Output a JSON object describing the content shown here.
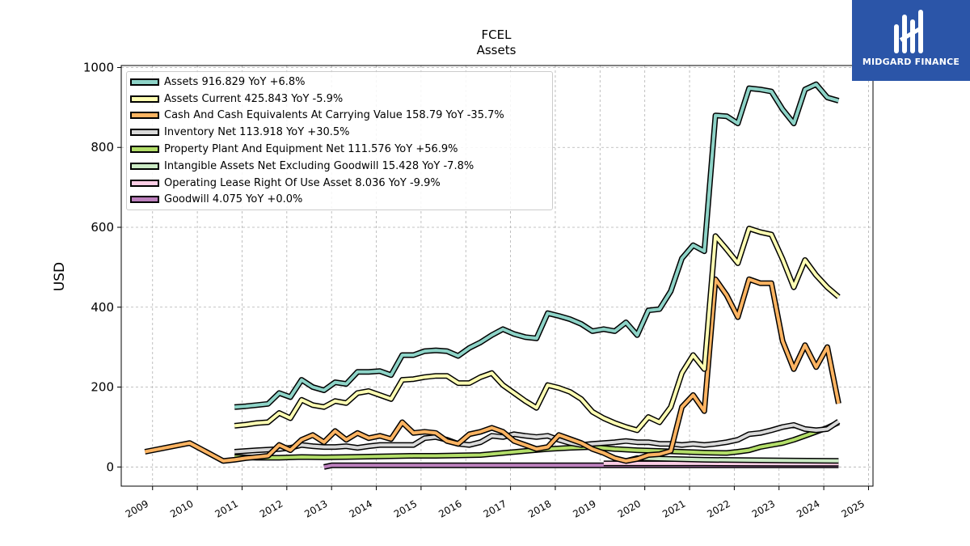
{
  "brand": {
    "name": "MIDGARD FINANCE",
    "bg_color": "#2b55a8",
    "icon": "midgard-logo-icon"
  },
  "chart_data": {
    "type": "line",
    "title": "FCEL",
    "subtitle": "Assets",
    "ylabel": "USD",
    "xlabel": "",
    "xlim": [
      2008.3,
      2025.1
    ],
    "ylim": [
      -48,
      1005
    ],
    "xticks": [
      "2009",
      "2010",
      "2011",
      "2012",
      "2013",
      "2014",
      "2015",
      "2016",
      "2017",
      "2018",
      "2019",
      "2020",
      "2021",
      "2022",
      "2023",
      "2024",
      "2025"
    ],
    "yticks": [
      0,
      200,
      400,
      600,
      800,
      1000
    ],
    "grid": true,
    "legend_position": "top-left",
    "series": [
      {
        "name": "Assets",
        "legend": "Assets  916.829 YoY +6.8%",
        "color": "#8dd3c7",
        "x": [
          2010.83,
          2011.08,
          2011.33,
          2011.58,
          2011.83,
          2012.08,
          2012.33,
          2012.58,
          2012.83,
          2013.08,
          2013.33,
          2013.58,
          2013.83,
          2014.08,
          2014.33,
          2014.58,
          2014.83,
          2015.08,
          2015.33,
          2015.58,
          2015.83,
          2016.08,
          2016.33,
          2016.58,
          2016.83,
          2017.08,
          2017.33,
          2017.58,
          2017.83,
          2018.08,
          2018.33,
          2018.58,
          2018.83,
          2019.08,
          2019.33,
          2019.58,
          2019.83,
          2020.08,
          2020.33,
          2020.58,
          2020.83,
          2021.08,
          2021.33,
          2021.58,
          2021.83,
          2022.08,
          2022.33,
          2022.58,
          2022.83,
          2023.08,
          2023.33,
          2023.58,
          2023.83,
          2024.08,
          2024.33
        ],
        "y": [
          150,
          152,
          155,
          158,
          185,
          175,
          218,
          200,
          192,
          212,
          208,
          238,
          238,
          240,
          230,
          280,
          280,
          290,
          292,
          290,
          278,
          298,
          312,
          330,
          345,
          333,
          325,
          322,
          385,
          378,
          370,
          358,
          340,
          345,
          340,
          362,
          330,
          392,
          395,
          440,
          522,
          555,
          540,
          880,
          878,
          860,
          948,
          945,
          940,
          895,
          860,
          945,
          958,
          925,
          916.829
        ]
      },
      {
        "name": "Assets Current",
        "legend": "Assets Current  425.843 YoY -5.9%",
        "color": "#ffffb3",
        "x": [
          2010.83,
          2011.08,
          2011.33,
          2011.58,
          2011.83,
          2012.08,
          2012.33,
          2012.58,
          2012.83,
          2013.08,
          2013.33,
          2013.58,
          2013.83,
          2014.08,
          2014.33,
          2014.58,
          2014.83,
          2015.08,
          2015.33,
          2015.58,
          2015.83,
          2016.08,
          2016.33,
          2016.58,
          2016.83,
          2017.08,
          2017.33,
          2017.58,
          2017.83,
          2018.08,
          2018.33,
          2018.58,
          2018.83,
          2019.08,
          2019.33,
          2019.58,
          2019.83,
          2020.08,
          2020.33,
          2020.58,
          2020.83,
          2021.08,
          2021.33,
          2021.58,
          2021.83,
          2022.08,
          2022.33,
          2022.58,
          2022.83,
          2023.08,
          2023.33,
          2023.58,
          2023.83,
          2024.08,
          2024.33
        ],
        "y": [
          103,
          106,
          110,
          112,
          135,
          122,
          168,
          155,
          150,
          165,
          160,
          185,
          190,
          180,
          170,
          218,
          220,
          225,
          228,
          228,
          210,
          210,
          225,
          235,
          205,
          185,
          165,
          148,
          205,
          198,
          188,
          170,
          138,
          122,
          110,
          100,
          92,
          125,
          112,
          150,
          235,
          280,
          245,
          578,
          545,
          510,
          597,
          588,
          582,
          520,
          450,
          518,
          480,
          450,
          425.843
        ]
      },
      {
        "name": "Cash And Cash Equivalents At Carrying Value",
        "legend": "Cash And Cash Equivalents At Carrying Value  158.79 YoY -35.7%",
        "color": "#fdb462",
        "x": [
          2008.83,
          2009.83,
          2010.58,
          2010.83,
          2011.08,
          2011.33,
          2011.58,
          2011.83,
          2012.08,
          2012.33,
          2012.58,
          2012.83,
          2013.08,
          2013.33,
          2013.58,
          2013.83,
          2014.08,
          2014.33,
          2014.58,
          2014.83,
          2015.08,
          2015.33,
          2015.58,
          2015.83,
          2016.08,
          2016.33,
          2016.58,
          2016.83,
          2017.08,
          2017.33,
          2017.58,
          2017.83,
          2018.08,
          2018.33,
          2018.58,
          2018.83,
          2019.08,
          2019.33,
          2019.58,
          2019.83,
          2020.08,
          2020.33,
          2020.58,
          2020.83,
          2021.08,
          2021.33,
          2021.58,
          2021.83,
          2022.08,
          2022.33,
          2022.58,
          2022.83,
          2023.08,
          2023.33,
          2023.58,
          2023.83,
          2024.08,
          2024.33
        ],
        "y": [
          38,
          60,
          15,
          18,
          22,
          25,
          28,
          55,
          42,
          68,
          80,
          62,
          90,
          68,
          85,
          72,
          78,
          70,
          112,
          85,
          88,
          85,
          65,
          58,
          82,
          88,
          98,
          88,
          65,
          55,
          45,
          50,
          80,
          70,
          60,
          45,
          35,
          22,
          15,
          20,
          30,
          32,
          40,
          150,
          180,
          140,
          470,
          430,
          375,
          470,
          460,
          460,
          315,
          245,
          305,
          250,
          300,
          158.79
        ]
      },
      {
        "name": "Inventory Net",
        "legend": "Inventory Net  113.918 YoY +30.5%",
        "color": "#d9d9d9",
        "x": [
          2010.83,
          2011.33,
          2011.83,
          2012.08,
          2012.33,
          2012.58,
          2012.83,
          2013.08,
          2013.33,
          2013.58,
          2013.83,
          2014.08,
          2014.33,
          2014.58,
          2014.83,
          2015.08,
          2015.33,
          2015.58,
          2015.83,
          2016.08,
          2016.33,
          2016.58,
          2016.83,
          2017.08,
          2017.33,
          2017.58,
          2017.83,
          2018.08,
          2018.33,
          2018.58,
          2018.83,
          2019.08,
          2019.33,
          2019.58,
          2019.83,
          2020.08,
          2020.33,
          2020.58,
          2020.83,
          2021.08,
          2021.33,
          2021.58,
          2021.83,
          2022.08,
          2022.33,
          2022.58,
          2022.83,
          2023.08,
          2023.33,
          2023.58,
          2023.83,
          2024.08,
          2024.33
        ],
        "y": [
          38,
          42,
          45,
          48,
          55,
          52,
          50,
          50,
          52,
          48,
          52,
          55,
          55,
          55,
          55,
          72,
          75,
          68,
          58,
          55,
          62,
          78,
          75,
          82,
          78,
          75,
          78,
          68,
          60,
          55,
          58,
          60,
          62,
          65,
          62,
          62,
          58,
          58,
          55,
          58,
          55,
          58,
          62,
          68,
          82,
          85,
          92,
          100,
          105,
          95,
          92,
          95,
          113.918
        ]
      },
      {
        "name": "Property Plant And Equipment Net",
        "legend": "Property Plant And Equipment Net  111.576 YoY +56.9%",
        "color": "#b3de69",
        "x": [
          2010.83,
          2011.33,
          2011.83,
          2012.33,
          2012.83,
          2013.33,
          2013.83,
          2014.33,
          2014.83,
          2015.33,
          2015.83,
          2016.33,
          2016.83,
          2017.33,
          2017.83,
          2018.33,
          2018.83,
          2019.33,
          2019.83,
          2020.33,
          2020.83,
          2021.33,
          2021.83,
          2022.08,
          2022.33,
          2022.58,
          2022.83,
          2023.08,
          2023.33,
          2023.58,
          2023.83,
          2024.08,
          2024.33
        ],
        "y": [
          25,
          23,
          23,
          25,
          24,
          25,
          26,
          27,
          28,
          28,
          29,
          30,
          35,
          40,
          45,
          48,
          50,
          45,
          42,
          40,
          38,
          36,
          35,
          38,
          42,
          50,
          55,
          60,
          68,
          78,
          88,
          98,
          111.576
        ]
      },
      {
        "name": "Intangible Assets Net Excluding Goodwill",
        "legend": "Intangible Assets Net Excluding Goodwill  15.428 YoY -7.8%",
        "color": "#ccebc5",
        "x": [
          2019.58,
          2019.83,
          2020.58,
          2021.33,
          2022.33,
          2023.33,
          2024.33
        ],
        "y": [
          15,
          22,
          20,
          18,
          17,
          16,
          15.428
        ]
      },
      {
        "name": "Operating Lease Right Of Use Asset",
        "legend": "Operating Lease Right Of Use Asset  8.036 YoY -9.9%",
        "color": "#fccde5",
        "x": [
          2019.08,
          2020.33,
          2021.33,
          2022.33,
          2023.33,
          2024.33
        ],
        "y": [
          9,
          9,
          9,
          8.5,
          8.2,
          8.036
        ]
      },
      {
        "name": "Goodwill",
        "legend": "Goodwill  4.075 YoY +0.0%",
        "color": "#bc80bd",
        "x": [
          2012.83,
          2013.0,
          2024.33
        ],
        "y": [
          0,
          4.075,
          4.075
        ]
      }
    ]
  }
}
